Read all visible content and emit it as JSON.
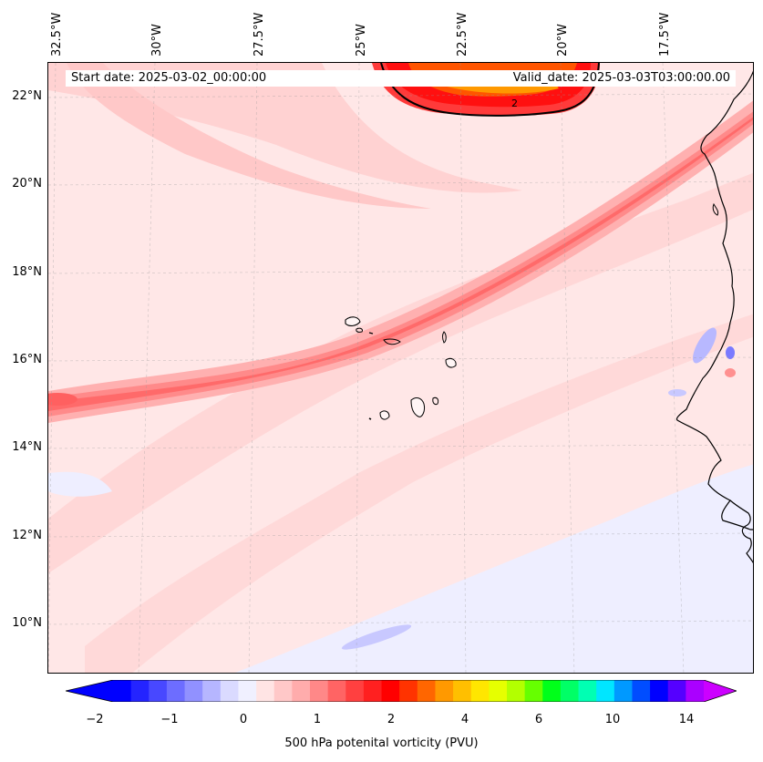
{
  "map": {
    "start_date": "Start date: 2025-03-02_00:00:00",
    "valid_date": "Valid_date: 2025-03-03T03:00:00.00",
    "contour_label": "2",
    "longitude_labels": [
      "32.5°W",
      "30°W",
      "27.5°W",
      "25°W",
      "22.5°W",
      "20°W",
      "17.5°W"
    ],
    "latitude_labels": [
      "22°N",
      "20°N",
      "18°N",
      "16°N",
      "14°N",
      "12°N",
      "10°N"
    ],
    "extent": {
      "lon_min": -32.6,
      "lon_max": -15.0,
      "lat_min": 8.9,
      "lat_max": 22.8
    }
  },
  "colorbar": {
    "label": "500 hPa potenital vorticity (PVU)",
    "tick_labels": [
      "−2",
      "−1",
      "0",
      "1",
      "2",
      "4",
      "6",
      "10",
      "14"
    ],
    "colors": [
      "#0000ff",
      "#2424ff",
      "#4848ff",
      "#6d6dff",
      "#9191ff",
      "#b6b6ff",
      "#dadaff",
      "#f0f0ff",
      "#ffe4e4",
      "#ffc8c8",
      "#ffacac",
      "#ff8888",
      "#ff6464",
      "#ff4040",
      "#ff2020",
      "#ff0000",
      "#ff3300",
      "#ff6600",
      "#ff9900",
      "#ffbf00",
      "#ffe600",
      "#e6ff00",
      "#b3ff00",
      "#66ff00",
      "#00ff1a",
      "#00ff66",
      "#00ffb3",
      "#00e6ff",
      "#0099ff",
      "#004dff",
      "#0000ff",
      "#5500ff",
      "#aa00ff"
    ],
    "extend_low_color": "#0000ff",
    "extend_high_color": "#cc00ff"
  }
}
